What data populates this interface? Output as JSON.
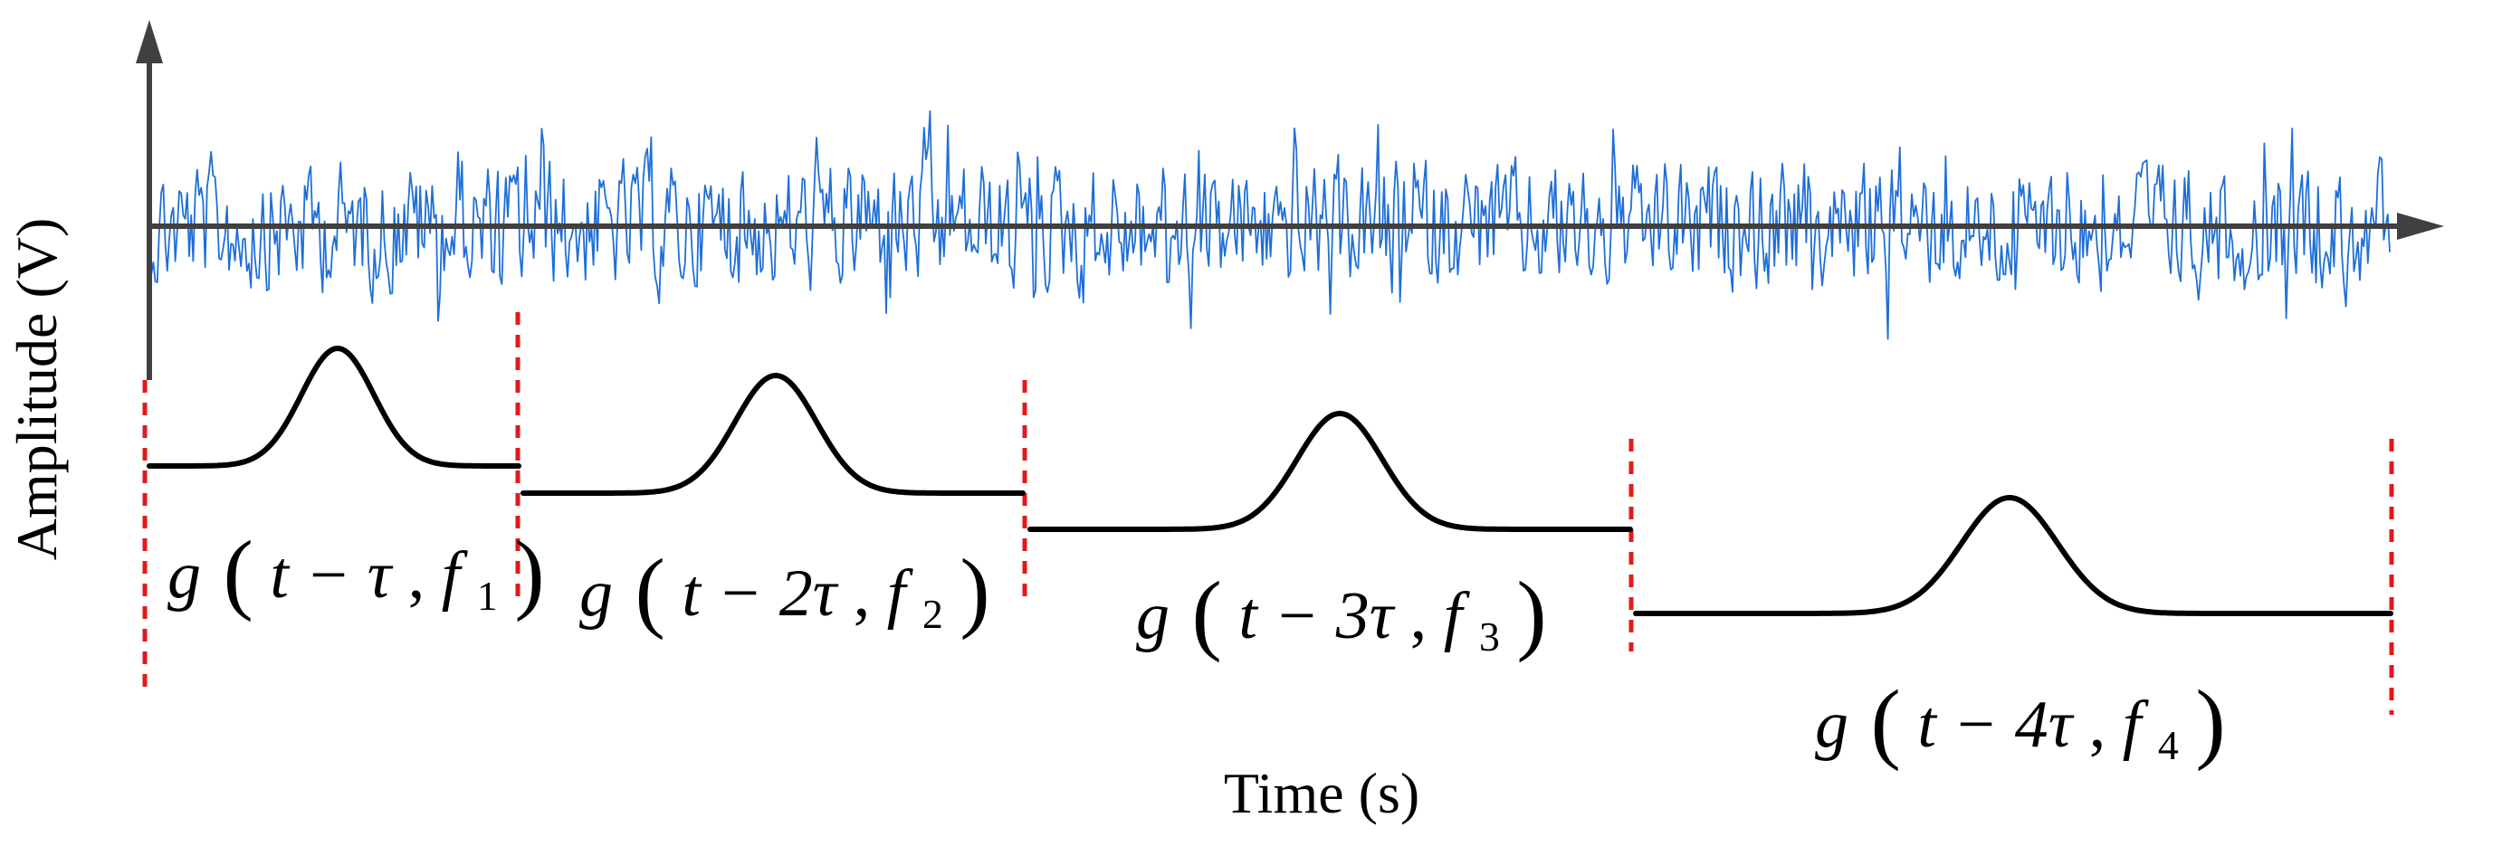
{
  "axes": {
    "ylabel": "Amplitude (V)",
    "xlabel": "Time (s)"
  },
  "colors": {
    "signal": "#1f6fd8",
    "window": "#000000",
    "divider": "#e01a1a",
    "axis": "#404040"
  },
  "windows": [
    {
      "func": "g",
      "shift": "t − τ",
      "freq": "f",
      "index": "1"
    },
    {
      "func": "g",
      "shift": "t − 2τ",
      "freq": "f",
      "index": "2"
    },
    {
      "func": "g",
      "shift": "t − 3τ",
      "freq": "f",
      "index": "3"
    },
    {
      "func": "g",
      "shift": "t − 4τ",
      "freq": "f",
      "index": "4"
    }
  ]
}
